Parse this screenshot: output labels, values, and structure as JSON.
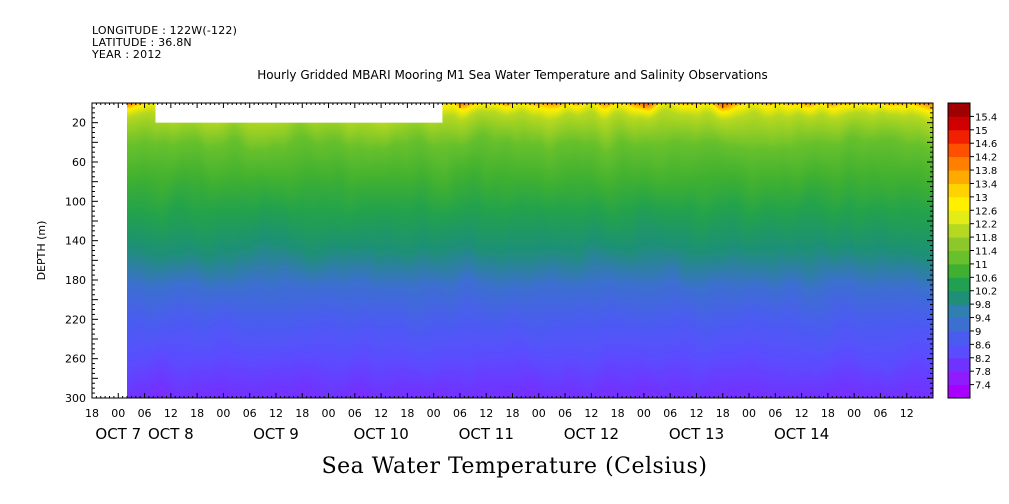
{
  "header": {
    "longitude": "LONGITUDE : 122W(-122)",
    "latitude": "LATITUDE : 36.8N",
    "year": "YEAR : 2012"
  },
  "chart_data": {
    "type": "heatmap",
    "title": "Hourly Gridded MBARI Mooring M1 Sea Water Temperature and Salinity Observations",
    "xlabel": "Sea Water Temperature (Celsius)",
    "ylabel": "DEPTH (m)",
    "xlim_hours": [
      -6,
      186
    ],
    "ylim": [
      300,
      0
    ],
    "y_inverted": true,
    "y_ticks": [
      20,
      60,
      100,
      140,
      180,
      220,
      260,
      300
    ],
    "x_hour_ticks": [
      -6,
      0,
      6,
      12,
      18,
      24,
      30,
      36,
      42,
      48,
      54,
      60,
      66,
      72,
      78,
      84,
      90,
      96,
      102,
      108,
      114,
      120,
      126,
      132,
      138,
      144,
      150,
      156,
      162,
      168,
      174,
      180
    ],
    "x_hour_tick_labels": [
      "18",
      "00",
      "06",
      "12",
      "18",
      "00",
      "06",
      "12",
      "18",
      "00",
      "06",
      "12",
      "18",
      "00",
      "06",
      "12",
      "18",
      "00",
      "06",
      "12",
      "18",
      "00",
      "06",
      "12",
      "18",
      "00",
      "06",
      "12",
      "18",
      "00",
      "06",
      "12"
    ],
    "x_day_labels": [
      {
        "hour": 0,
        "label": "OCT  7"
      },
      {
        "hour": 12,
        "label": "OCT  8"
      },
      {
        "hour": 36,
        "label": "OCT  9"
      },
      {
        "hour": 60,
        "label": "OCT 10"
      },
      {
        "hour": 84,
        "label": "OCT 11"
      },
      {
        "hour": 108,
        "label": "OCT 12"
      },
      {
        "hour": 132,
        "label": "OCT 13"
      },
      {
        "hour": 156,
        "label": "OCT 14"
      }
    ],
    "data_start_hour": 2,
    "missing_regions": [
      {
        "hour_start": 8.5,
        "hour_end": 74,
        "depth_top": 0,
        "depth_bottom": 20
      }
    ],
    "depth_profile": [
      {
        "depth": 0,
        "value": 15.0
      },
      {
        "depth": 14,
        "value": 14.6
      },
      {
        "depth": 22,
        "value": 13.9
      },
      {
        "depth": 28,
        "value": 12.8
      },
      {
        "depth": 36,
        "value": 12.0
      },
      {
        "depth": 60,
        "value": 11.4
      },
      {
        "depth": 90,
        "value": 11.0
      },
      {
        "depth": 120,
        "value": 10.4
      },
      {
        "depth": 150,
        "value": 9.9
      },
      {
        "depth": 180,
        "value": 9.4
      },
      {
        "depth": 210,
        "value": 9.0
      },
      {
        "depth": 240,
        "value": 8.6
      },
      {
        "depth": 270,
        "value": 8.1
      },
      {
        "depth": 300,
        "value": 7.6
      }
    ],
    "colorbar": {
      "levels": [
        "7.4",
        "7.8",
        "8.2",
        "8.6",
        "9",
        "9.4",
        "9.8",
        "10.2",
        "10.6",
        "11",
        "11.4",
        "11.8",
        "12.2",
        "12.6",
        "13",
        "13.4",
        "13.8",
        "14.2",
        "14.6",
        "15",
        "15.4"
      ],
      "colors": [
        "#a800ff",
        "#8f1cff",
        "#7033ff",
        "#5a4dff",
        "#4a5cf0",
        "#3c6fd0",
        "#2f7fb0",
        "#1f8f78",
        "#20a050",
        "#3fb030",
        "#67c02c",
        "#8cc82a",
        "#b5d820",
        "#e4ec18",
        "#fff000",
        "#ffd200",
        "#ffaa00",
        "#ff8000",
        "#ff5000",
        "#f02000",
        "#d00000",
        "#a00000"
      ]
    }
  }
}
